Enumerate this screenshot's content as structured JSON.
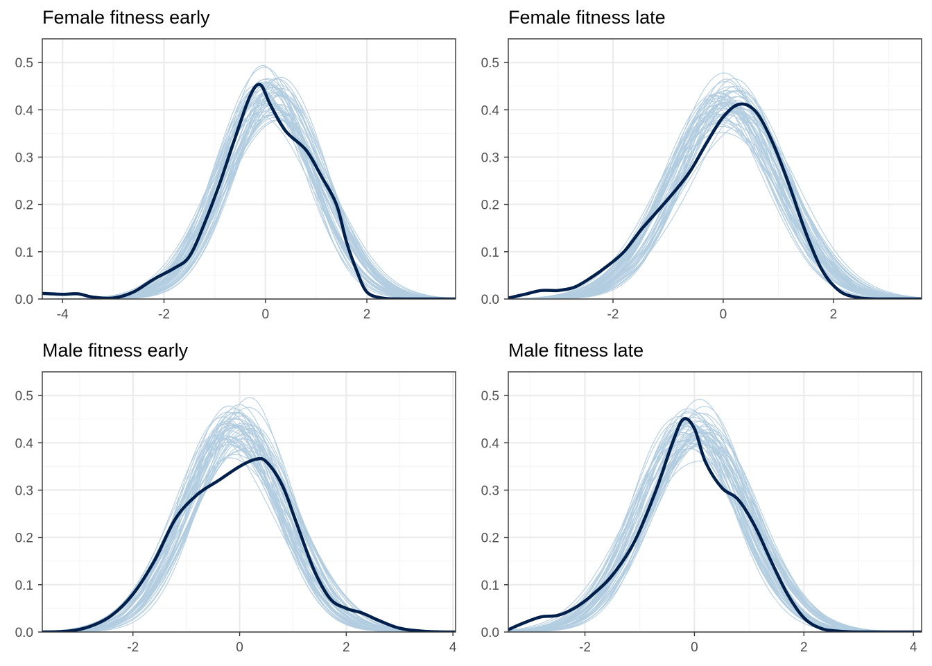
{
  "figure": {
    "description_type": "faceted density plot (posterior predictive check)",
    "colors": {
      "observed": "#011f4b",
      "replicates": "#b3cde0",
      "grid_major": "#ebebeb",
      "grid_minor": "#f5f5f5",
      "panel_border": "#333333",
      "tick_text": "#4d4d4d",
      "title_text": "#000000"
    }
  },
  "chart_data": [
    {
      "type": "area",
      "title": "Female fitness early",
      "xlabel": "",
      "ylabel": "",
      "xlim": [
        -4.4,
        3.75
      ],
      "ylim": [
        0,
        0.55
      ],
      "x_ticks": [
        -4,
        -2,
        0,
        2
      ],
      "x_tick_labels": [
        "-4",
        "-2",
        "0",
        "2"
      ],
      "y_ticks": [
        0,
        0.1,
        0.2,
        0.3,
        0.4,
        0.5
      ],
      "y_tick_labels": [
        "0.0",
        "0.1",
        "0.2",
        "0.3",
        "0.4",
        "0.5"
      ],
      "observed": {
        "name": "observed",
        "x": [
          -4.4,
          -4.0,
          -3.7,
          -3.4,
          -3.0,
          -2.6,
          -2.2,
          -1.8,
          -1.5,
          -1.2,
          -0.9,
          -0.6,
          -0.3,
          -0.1,
          0.1,
          0.4,
          0.8,
          1.1,
          1.4,
          1.6,
          1.8,
          2.0,
          2.3,
          2.7,
          3.75
        ],
        "y": [
          0.012,
          0.01,
          0.011,
          0.004,
          0.002,
          0.015,
          0.042,
          0.065,
          0.09,
          0.16,
          0.245,
          0.34,
          0.43,
          0.453,
          0.41,
          0.355,
          0.315,
          0.26,
          0.2,
          0.12,
          0.06,
          0.015,
          0.002,
          0.0,
          0.0
        ]
      },
      "replicates": {
        "count": 50,
        "center": 0.1,
        "sd": 0.95,
        "peak_range": [
          0.33,
          0.48
        ]
      }
    },
    {
      "type": "area",
      "title": "Female fitness late",
      "xlabel": "",
      "ylabel": "",
      "xlim": [
        -3.9,
        3.6
      ],
      "ylim": [
        0,
        0.55
      ],
      "x_ticks": [
        -2,
        0,
        2
      ],
      "x_tick_labels": [
        "-2",
        "0",
        "2"
      ],
      "y_ticks": [
        0,
        0.1,
        0.2,
        0.3,
        0.4,
        0.5
      ],
      "y_tick_labels": [
        "0.0",
        "0.1",
        "0.2",
        "0.3",
        "0.4",
        "0.5"
      ],
      "observed": {
        "name": "observed",
        "x": [
          -3.9,
          -3.6,
          -3.3,
          -3.0,
          -2.7,
          -2.4,
          -2.1,
          -1.8,
          -1.5,
          -1.2,
          -0.9,
          -0.6,
          -0.3,
          0.0,
          0.3,
          0.6,
          0.9,
          1.2,
          1.5,
          1.8,
          2.1,
          2.4,
          2.8,
          3.6
        ],
        "y": [
          0.002,
          0.01,
          0.018,
          0.018,
          0.025,
          0.045,
          0.07,
          0.1,
          0.145,
          0.185,
          0.225,
          0.27,
          0.33,
          0.385,
          0.412,
          0.395,
          0.33,
          0.24,
          0.14,
          0.06,
          0.018,
          0.004,
          0.0,
          0.0
        ]
      },
      "replicates": {
        "count": 50,
        "center": 0.05,
        "sd": 0.98,
        "peak_range": [
          0.35,
          0.5
        ]
      }
    },
    {
      "type": "area",
      "title": "Male fitness early",
      "xlabel": "",
      "ylabel": "",
      "xlim": [
        -3.7,
        4.05
      ],
      "ylim": [
        0,
        0.55
      ],
      "x_ticks": [
        -2,
        0,
        2,
        4
      ],
      "x_tick_labels": [
        "-2",
        "0",
        "2",
        "4"
      ],
      "y_ticks": [
        0,
        0.1,
        0.2,
        0.3,
        0.4,
        0.5
      ],
      "y_tick_labels": [
        "0.0",
        "0.1",
        "0.2",
        "0.3",
        "0.4",
        "0.5"
      ],
      "observed": {
        "name": "observed",
        "x": [
          -3.7,
          -3.2,
          -2.8,
          -2.4,
          -2.0,
          -1.6,
          -1.2,
          -0.8,
          -0.4,
          0.0,
          0.3,
          0.5,
          0.8,
          1.1,
          1.4,
          1.7,
          2.0,
          2.3,
          2.6,
          3.0,
          3.5,
          4.05
        ],
        "y": [
          0.0,
          0.002,
          0.012,
          0.035,
          0.08,
          0.15,
          0.24,
          0.29,
          0.32,
          0.35,
          0.365,
          0.36,
          0.31,
          0.22,
          0.13,
          0.07,
          0.05,
          0.04,
          0.025,
          0.008,
          0.001,
          0.0
        ]
      },
      "replicates": {
        "count": 50,
        "center": -0.05,
        "sd": 0.95,
        "peak_range": [
          0.35,
          0.49
        ]
      }
    },
    {
      "type": "area",
      "title": "Male fitness late",
      "xlabel": "",
      "ylabel": "",
      "xlim": [
        -3.4,
        4.15
      ],
      "ylim": [
        0,
        0.55
      ],
      "x_ticks": [
        -2,
        0,
        2,
        4
      ],
      "x_tick_labels": [
        "-2",
        "0",
        "2",
        "4"
      ],
      "y_ticks": [
        0,
        0.1,
        0.2,
        0.3,
        0.4,
        0.5
      ],
      "y_tick_labels": [
        "0.0",
        "0.1",
        "0.2",
        "0.3",
        "0.4",
        "0.5"
      ],
      "observed": {
        "name": "observed",
        "x": [
          -3.4,
          -3.1,
          -2.8,
          -2.5,
          -2.2,
          -1.9,
          -1.5,
          -1.1,
          -0.7,
          -0.4,
          -0.2,
          0.0,
          0.2,
          0.5,
          0.8,
          1.1,
          1.4,
          1.7,
          2.0,
          2.3,
          2.6,
          3.0,
          4.15
        ],
        "y": [
          0.005,
          0.02,
          0.032,
          0.035,
          0.05,
          0.075,
          0.12,
          0.19,
          0.3,
          0.4,
          0.45,
          0.43,
          0.36,
          0.305,
          0.28,
          0.225,
          0.15,
          0.08,
          0.03,
          0.008,
          0.002,
          0.0,
          0.0
        ]
      },
      "replicates": {
        "count": 50,
        "center": 0.0,
        "sd": 0.95,
        "peak_range": [
          0.34,
          0.46
        ]
      }
    }
  ]
}
